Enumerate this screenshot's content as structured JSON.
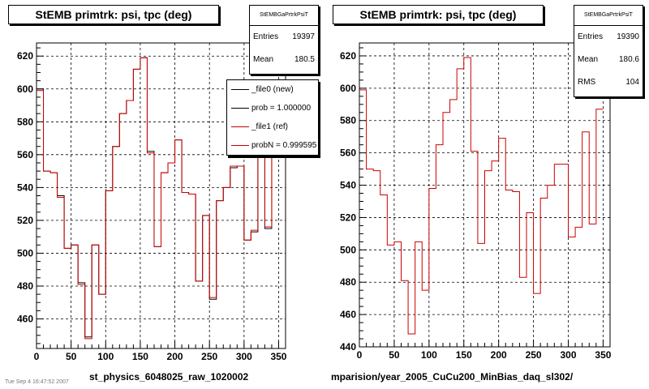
{
  "panels": [
    {
      "title": "StEMB primtrk: psi, tpc (deg)",
      "stats": {
        "name": "StEMBGaPrtrkPsiT",
        "rows": [
          {
            "key": "Entries",
            "value": "19397"
          },
          {
            "key": "Mean",
            "value": "180.5"
          }
        ]
      },
      "bottom_label": "st_physics_6048025_raw_1020002",
      "legend": [
        {
          "label": "_file0 (new)",
          "color": "#000000"
        },
        {
          "label": "prob = 1.000000",
          "color": "#000000"
        },
        {
          "label": "_file1 (ref)",
          "color": "#cc0000"
        },
        {
          "label": "probN = 0.999595",
          "color": "#cc0000"
        }
      ]
    },
    {
      "title": "StEMB primtrk: psi, tpc (deg)",
      "stats": {
        "name": "StEMBGaPrtrkPsiT",
        "rows": [
          {
            "key": "Entries",
            "value": "19390"
          },
          {
            "key": "Mean",
            "value": "180.6"
          },
          {
            "key": "RMS",
            "value": "104"
          }
        ]
      },
      "bottom_label": "mparision/year_2005_CuCu200_MinBias_daq_sl302/"
    }
  ],
  "footer_text": "Tue Sep 4 16:47:52 2007",
  "chart_data": [
    {
      "type": "line",
      "style": "step-histogram",
      "title": "StEMB primtrk: psi, tpc (deg)",
      "xlabel": "",
      "ylabel": "",
      "xlim": [
        0,
        360
      ],
      "ylim": [
        442,
        628
      ],
      "xticks": [
        0,
        50,
        100,
        150,
        200,
        250,
        300,
        350
      ],
      "yticks": [
        460,
        480,
        500,
        520,
        540,
        560,
        580,
        600,
        620
      ],
      "grid": true,
      "bin_edges": [
        0,
        10,
        20,
        30,
        40,
        50,
        60,
        70,
        80,
        90,
        100,
        110,
        120,
        130,
        140,
        150,
        160,
        170,
        180,
        190,
        200,
        210,
        220,
        230,
        240,
        250,
        260,
        270,
        280,
        290,
        300,
        310,
        320,
        330,
        340,
        350
      ],
      "series": [
        {
          "name": "_file0 (new)",
          "color": "#000000",
          "values": [
            600,
            550,
            549,
            535,
            503,
            505,
            482,
            449,
            505,
            475,
            538,
            565,
            585,
            593,
            612,
            619,
            562,
            504,
            549,
            555,
            569,
            537,
            536,
            483,
            523,
            472,
            532,
            540,
            552,
            553,
            508,
            513,
            572,
            515,
            587
          ]
        },
        {
          "name": "_file1 (ref)",
          "color": "#cc0000",
          "values": [
            599,
            550,
            549,
            534,
            503,
            505,
            481,
            448,
            505,
            475,
            538,
            565,
            585,
            593,
            612,
            619,
            561,
            504,
            549,
            555,
            569,
            537,
            536,
            483,
            523,
            473,
            532,
            540,
            553,
            553,
            508,
            514,
            573,
            516,
            587
          ]
        }
      ]
    },
    {
      "type": "line",
      "style": "step-histogram",
      "title": "StEMB primtrk: psi, tpc (deg)",
      "xlabel": "",
      "ylabel": "",
      "xlim": [
        0,
        360
      ],
      "ylim": [
        440,
        628
      ],
      "xticks": [
        0,
        50,
        100,
        150,
        200,
        250,
        300,
        350
      ],
      "yticks": [
        440,
        460,
        480,
        500,
        520,
        540,
        560,
        580,
        600,
        620
      ],
      "grid": true,
      "bin_edges": [
        0,
        10,
        20,
        30,
        40,
        50,
        60,
        70,
        80,
        90,
        100,
        110,
        120,
        130,
        140,
        150,
        160,
        170,
        180,
        190,
        200,
        210,
        220,
        230,
        240,
        250,
        260,
        270,
        280,
        290,
        300,
        310,
        320,
        330,
        340,
        350
      ],
      "series": [
        {
          "name": "_file1 (ref)",
          "color": "#cc0000",
          "values": [
            599,
            550,
            549,
            534,
            503,
            505,
            481,
            448,
            505,
            475,
            538,
            565,
            585,
            593,
            612,
            619,
            561,
            504,
            549,
            555,
            569,
            537,
            536,
            483,
            523,
            473,
            532,
            540,
            553,
            553,
            508,
            514,
            573,
            516,
            587
          ]
        }
      ]
    }
  ]
}
